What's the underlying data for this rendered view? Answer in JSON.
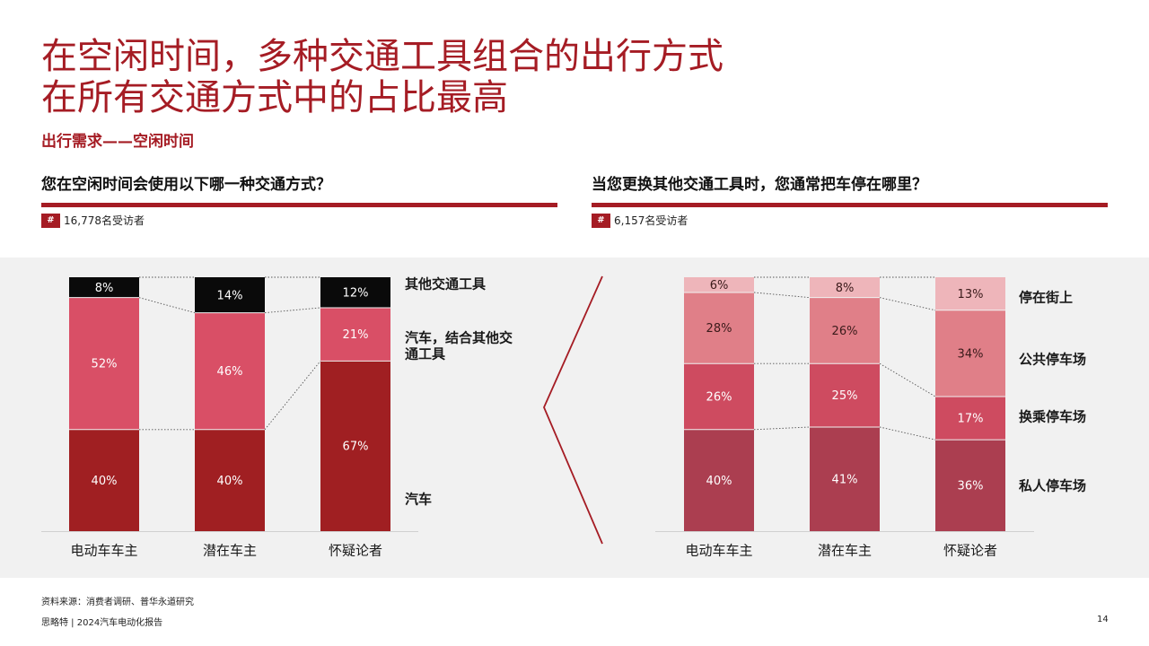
{
  "title_line1": "在空闲时间，多种交通工具组合的出行方式",
  "title_line2": "在所有交通方式中的占比最高",
  "subtitle": "出行需求——空闲时间",
  "footer": {
    "source": "资料来源：消费者调研、普华永道研究",
    "brand": "思略特 | 2024汽车电动化报告",
    "page": "14"
  },
  "colors": {
    "accent": "#a51c24",
    "left_car": "#a01f22",
    "left_combo": "#d94f66",
    "left_other": "#0a0a0a",
    "right_private": "#ab3e50",
    "right_transfer": "#ce4b60",
    "right_public": "#e07f88",
    "right_street": "#eeb5ba"
  },
  "chart_data": [
    {
      "type": "bar",
      "stacked": true,
      "title": "您在空闲时间会使用以下哪一种交通方式？",
      "respondents": "16,778名受访者",
      "respondent_icon": "#",
      "categories": [
        "电动车车主",
        "潜在车主",
        "怀疑论者"
      ],
      "series": [
        {
          "name": "汽车",
          "values": [
            40,
            40,
            67
          ],
          "labels": [
            "40%",
            "40%",
            "67%"
          ],
          "color": "#a01f22"
        },
        {
          "name": "汽车，结合其他交通工具",
          "name_lines": [
            "汽车，结合其他交",
            "通工具"
          ],
          "values": [
            52,
            46,
            21
          ],
          "labels": [
            "52%",
            "46%",
            "21%"
          ],
          "color": "#d94f66"
        },
        {
          "name": "其他交通工具",
          "values": [
            8,
            14,
            12
          ],
          "labels": [
            "8%",
            "14%",
            "12%"
          ],
          "color": "#0a0a0a"
        }
      ],
      "ylim": [
        0,
        100
      ]
    },
    {
      "type": "bar",
      "stacked": true,
      "title": "当您更换其他交通工具时，您通常把车停在哪里？",
      "respondents": "6,157名受访者",
      "respondent_icon": "#",
      "categories": [
        "电动车车主",
        "潜在车主",
        "怀疑论者"
      ],
      "series": [
        {
          "name": "私人停车场",
          "values": [
            40,
            41,
            36
          ],
          "labels": [
            "40%",
            "41%",
            "36%"
          ],
          "color": "#ab3e50"
        },
        {
          "name": "换乘停车场",
          "values": [
            26,
            25,
            17
          ],
          "labels": [
            "26%",
            "25%",
            "17%"
          ],
          "color": "#ce4b60"
        },
        {
          "name": "公共停车场",
          "values": [
            28,
            26,
            34
          ],
          "labels": [
            "28%",
            "26%",
            "34%"
          ],
          "color": "#e07f88"
        },
        {
          "name": "停在街上",
          "values": [
            6,
            8,
            13
          ],
          "labels": [
            "6%",
            "8%",
            "13%"
          ],
          "color": "#eeb5ba"
        }
      ],
      "ylim": [
        0,
        100
      ]
    }
  ]
}
